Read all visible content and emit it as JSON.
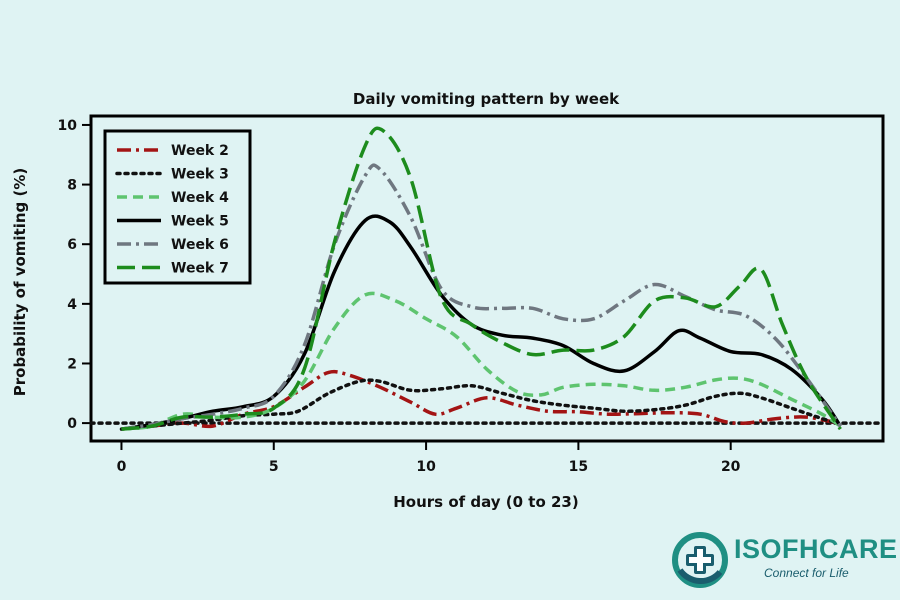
{
  "chart_data": {
    "type": "line",
    "title": "Daily vomiting pattern by week",
    "xlabel": "Hours of day (0 to 23)",
    "ylabel": "Probability of vomiting (%)",
    "xlim": [
      -1,
      25
    ],
    "ylim": [
      -0.6,
      10.3
    ],
    "xticks": [
      0,
      5,
      10,
      15,
      20
    ],
    "yticks": [
      0,
      2,
      4,
      6,
      8,
      10
    ],
    "legend_position": "top-left",
    "baseline": {
      "y": 0,
      "style": "dotted",
      "color": "#111111"
    },
    "series": [
      {
        "name": "Week 2",
        "color": "#a31414",
        "dash": "dashdot",
        "x": [
          0,
          1,
          2,
          3,
          4,
          5,
          6,
          6.8,
          7.5,
          8.5,
          9.5,
          10.3,
          11,
          12,
          13,
          14,
          15,
          16,
          17,
          18,
          19,
          19.8,
          20.5,
          21.5,
          22.5,
          23.5
        ],
        "y": [
          -0.2,
          -0.1,
          0,
          -0.1,
          0.3,
          0.55,
          1.2,
          1.7,
          1.6,
          1.2,
          0.7,
          0.3,
          0.5,
          0.85,
          0.6,
          0.4,
          0.38,
          0.3,
          0.32,
          0.35,
          0.3,
          0.05,
          0.0,
          0.15,
          0.2,
          0.0
        ]
      },
      {
        "name": "Week 3",
        "color": "#111111",
        "dash": "dotted",
        "x": [
          0,
          1,
          2,
          3,
          4,
          5,
          5.8,
          6.8,
          7.8,
          8.5,
          9.5,
          10.5,
          11.5,
          12.5,
          13.5,
          14.5,
          15.5,
          16.5,
          17.5,
          18.5,
          19.5,
          20.3,
          21,
          22,
          23,
          23.5
        ],
        "y": [
          -0.2,
          -0.1,
          0,
          0.1,
          0.25,
          0.3,
          0.4,
          1.0,
          1.4,
          1.4,
          1.1,
          1.15,
          1.25,
          1.0,
          0.75,
          0.6,
          0.5,
          0.4,
          0.45,
          0.6,
          0.9,
          1.0,
          0.85,
          0.5,
          0.15,
          0.0
        ]
      },
      {
        "name": "Week 4",
        "color": "#5ec46f",
        "dash": "dashed",
        "x": [
          0,
          1,
          2,
          3,
          4,
          5,
          6,
          7,
          8,
          9,
          10,
          11,
          12,
          13,
          13.8,
          14.5,
          15.5,
          16.5,
          17.5,
          18.5,
          19.5,
          20.3,
          21,
          22,
          23,
          23.6
        ],
        "y": [
          -0.2,
          -0.1,
          0.3,
          0.2,
          0.2,
          0.5,
          1.4,
          3.2,
          4.3,
          4.1,
          3.5,
          2.9,
          1.8,
          1.05,
          0.95,
          1.2,
          1.3,
          1.25,
          1.1,
          1.2,
          1.45,
          1.5,
          1.3,
          0.8,
          0.3,
          -0.1
        ]
      },
      {
        "name": "Week 5",
        "color": "#000000",
        "dash": "solid",
        "x": [
          0,
          1,
          2,
          3,
          4,
          5,
          6,
          7,
          8,
          8.8,
          9.5,
          10.5,
          11.5,
          12.5,
          13.5,
          14.5,
          15.5,
          16.5,
          17.5,
          18.3,
          19,
          20,
          21,
          22,
          23,
          23.6
        ],
        "y": [
          -0.2,
          -0.05,
          0.15,
          0.4,
          0.55,
          0.9,
          2.3,
          5.1,
          6.8,
          6.75,
          5.9,
          4.3,
          3.3,
          2.95,
          2.85,
          2.6,
          2.0,
          1.75,
          2.4,
          3.1,
          2.85,
          2.4,
          2.3,
          1.8,
          0.8,
          -0.1
        ]
      },
      {
        "name": "Week 6",
        "color": "#6f7780",
        "dash": "dashdot",
        "x": [
          0,
          1,
          2,
          3,
          4,
          5,
          6,
          7,
          8,
          8.5,
          9.5,
          10.5,
          11.5,
          12.5,
          13.5,
          14.5,
          15.5,
          16.5,
          17.5,
          18.5,
          19.5,
          20.5,
          21.5,
          22.5,
          23.6
        ],
        "y": [
          -0.2,
          -0.05,
          0.15,
          0.3,
          0.5,
          0.9,
          2.6,
          6.0,
          8.3,
          8.5,
          6.9,
          4.5,
          3.9,
          3.85,
          3.85,
          3.5,
          3.5,
          4.1,
          4.65,
          4.25,
          3.8,
          3.6,
          2.8,
          1.5,
          -0.1
        ]
      },
      {
        "name": "Week 7",
        "color": "#1d8c1d",
        "dash": "longdash",
        "x": [
          0,
          1,
          2,
          3,
          4,
          5,
          6,
          7,
          8,
          8.6,
          9.5,
          10.5,
          11.5,
          12.5,
          13.5,
          14.5,
          15.5,
          16.5,
          17.5,
          18.5,
          19.5,
          20.3,
          21,
          21.7,
          22.5,
          23.6
        ],
        "y": [
          -0.2,
          -0.1,
          0.2,
          0.2,
          0.3,
          0.5,
          1.8,
          6.1,
          9.3,
          9.8,
          8.2,
          4.2,
          3.3,
          2.7,
          2.3,
          2.45,
          2.45,
          2.9,
          4.1,
          4.2,
          3.9,
          4.6,
          5.15,
          3.3,
          1.5,
          -0.2
        ]
      }
    ]
  },
  "logo": {
    "name": "ISOFHCARE",
    "tagline": "Connect for Life",
    "color_primary": "#1f8f83",
    "color_secondary": "#1a5d6d",
    "icon": "medical-cross-icon"
  }
}
